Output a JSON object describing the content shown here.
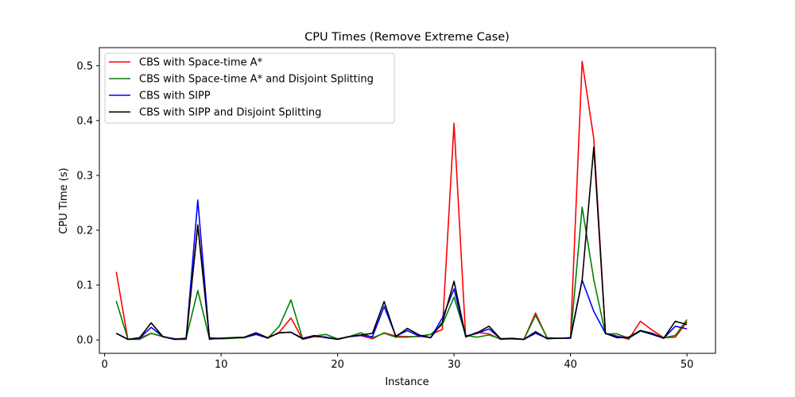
{
  "chart_data": {
    "type": "line",
    "title": "CPU Times (Remove Extreme Case)",
    "xlabel": "Instance",
    "ylabel": "CPU Time (s)",
    "xlim": [
      -0.45,
      52.45
    ],
    "ylim": [
      -0.0245,
      0.533
    ],
    "xticks": [
      0,
      10,
      20,
      30,
      40,
      50
    ],
    "yticks": [
      0.0,
      0.1,
      0.2,
      0.3,
      0.4,
      0.5
    ],
    "xtick_labels": [
      "0",
      "10",
      "20",
      "30",
      "40",
      "50"
    ],
    "ytick_labels": [
      "0.0",
      "0.1",
      "0.2",
      "0.3",
      "0.4",
      "0.5"
    ],
    "grid": false,
    "legend_position": "upper-left",
    "x": [
      1,
      2,
      3,
      4,
      5,
      6,
      7,
      8,
      9,
      10,
      11,
      12,
      13,
      14,
      15,
      16,
      17,
      18,
      19,
      20,
      21,
      22,
      23,
      24,
      25,
      26,
      27,
      28,
      29,
      30,
      31,
      32,
      33,
      34,
      35,
      36,
      37,
      38,
      39,
      40,
      41,
      42,
      43,
      44,
      45,
      46,
      47,
      48,
      49,
      50
    ],
    "series": [
      {
        "name": "CBS with Space-time A*",
        "color": "#ff0000",
        "values": [
          0.124,
          0.001,
          0.003,
          0.012,
          0.006,
          0.001,
          0.001,
          0.21,
          0.004,
          0.002,
          0.003,
          0.004,
          0.012,
          0.003,
          0.014,
          0.04,
          0.001,
          0.006,
          0.005,
          0.001,
          0.006,
          0.008,
          0.002,
          0.013,
          0.007,
          0.006,
          0.006,
          0.01,
          0.019,
          0.395,
          0.005,
          0.014,
          0.011,
          0.001,
          0.002,
          0.001,
          0.049,
          0.003,
          0.003,
          0.003,
          0.508,
          0.367,
          0.012,
          0.007,
          0.001,
          0.034,
          0.018,
          0.004,
          0.005,
          0.033
        ]
      },
      {
        "name": "CBS with Space-time A* and Disjoint Splitting",
        "color": "#008000",
        "values": [
          0.071,
          0.001,
          0.001,
          0.012,
          0.006,
          0.001,
          0.003,
          0.09,
          0.002,
          0.002,
          0.003,
          0.004,
          0.01,
          0.003,
          0.025,
          0.073,
          0.002,
          0.007,
          0.01,
          0.002,
          0.006,
          0.013,
          0.004,
          0.012,
          0.005,
          0.005,
          0.007,
          0.01,
          0.028,
          0.078,
          0.008,
          0.005,
          0.009,
          0.002,
          0.002,
          0.001,
          0.045,
          0.004,
          0.003,
          0.003,
          0.242,
          0.11,
          0.011,
          0.011,
          0.003,
          0.016,
          0.01,
          0.004,
          0.008,
          0.037
        ]
      },
      {
        "name": "CBS with SIPP",
        "color": "#0000ff",
        "values": [
          0.012,
          0.001,
          0.003,
          0.023,
          0.006,
          0.002,
          0.002,
          0.255,
          0.001,
          0.003,
          0.004,
          0.005,
          0.01,
          0.004,
          0.013,
          0.014,
          0.003,
          0.008,
          0.004,
          0.001,
          0.006,
          0.008,
          0.006,
          0.061,
          0.007,
          0.017,
          0.007,
          0.004,
          0.04,
          0.093,
          0.007,
          0.012,
          0.02,
          0.002,
          0.002,
          0.001,
          0.012,
          0.003,
          0.003,
          0.003,
          0.109,
          0.052,
          0.012,
          0.006,
          0.004,
          0.017,
          0.01,
          0.003,
          0.025,
          0.02
        ]
      },
      {
        "name": "CBS with SIPP and Disjoint Splitting",
        "color": "#000000",
        "values": [
          0.012,
          0.001,
          0.004,
          0.031,
          0.006,
          0.001,
          0.003,
          0.209,
          0.003,
          0.003,
          0.004,
          0.005,
          0.013,
          0.004,
          0.013,
          0.014,
          0.002,
          0.007,
          0.005,
          0.001,
          0.006,
          0.009,
          0.012,
          0.07,
          0.006,
          0.021,
          0.009,
          0.004,
          0.032,
          0.107,
          0.006,
          0.013,
          0.025,
          0.002,
          0.003,
          0.001,
          0.015,
          0.002,
          0.003,
          0.004,
          0.109,
          0.352,
          0.012,
          0.004,
          0.005,
          0.017,
          0.012,
          0.003,
          0.034,
          0.028
        ]
      }
    ]
  }
}
